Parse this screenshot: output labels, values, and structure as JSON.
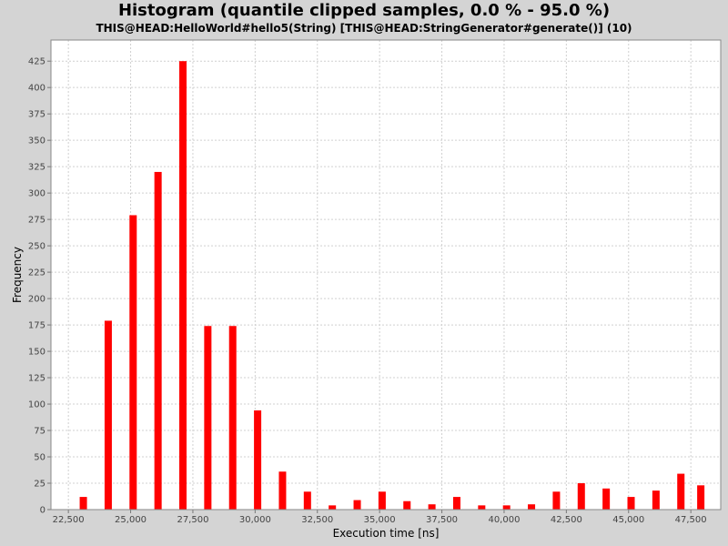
{
  "header": {
    "title": "Histogram (quantile clipped samples, 0.0 % - 95.0 %)",
    "subtitle": "THIS@HEAD:HelloWorld#hello5(String) [THIS@HEAD:StringGenerator#generate()] (10)"
  },
  "colors": {
    "bar": "#ff0000",
    "plot_background": "#ffffff",
    "page_background": "#d4d4d4",
    "grid": "#d0d0d0"
  },
  "chart_data": {
    "type": "bar",
    "title": "Histogram (quantile clipped samples, 0.0 % - 95.0 %)",
    "subtitle": "THIS@HEAD:HelloWorld#hello5(String) [THIS@HEAD:StringGenerator#generate()] (10)",
    "xlabel": "Execution time [ns]",
    "ylabel": "Frequency",
    "xlim": [
      21800,
      48700
    ],
    "ylim": [
      0,
      445
    ],
    "grid": true,
    "x": [
      23100,
      24100,
      25100,
      26100,
      27100,
      28100,
      29100,
      30100,
      31100,
      32100,
      33100,
      34100,
      35100,
      36100,
      37100,
      38100,
      39100,
      40100,
      41100,
      42100,
      43100,
      44100,
      45100,
      46100,
      47100,
      47900
    ],
    "values": [
      12,
      179,
      279,
      320,
      425,
      174,
      174,
      94,
      36,
      17,
      4,
      9,
      17,
      8,
      5,
      12,
      4,
      4,
      5,
      17,
      25,
      20,
      12,
      18,
      34,
      23
    ],
    "x_ticks": [
      "22,500",
      "25,000",
      "27,500",
      "30,000",
      "32,500",
      "35,000",
      "37,500",
      "40,000",
      "42,500",
      "45,000",
      "47,500"
    ],
    "x_tick_values": [
      22500,
      25000,
      27500,
      30000,
      32500,
      35000,
      37500,
      40000,
      42500,
      45000,
      47500
    ],
    "y_ticks": [
      "0",
      "25",
      "50",
      "75",
      "100",
      "125",
      "150",
      "175",
      "200",
      "225",
      "250",
      "275",
      "300",
      "325",
      "350",
      "375",
      "400",
      "425"
    ],
    "y_tick_values": [
      0,
      25,
      50,
      75,
      100,
      125,
      150,
      175,
      200,
      225,
      250,
      275,
      300,
      325,
      350,
      375,
      400,
      425
    ]
  }
}
